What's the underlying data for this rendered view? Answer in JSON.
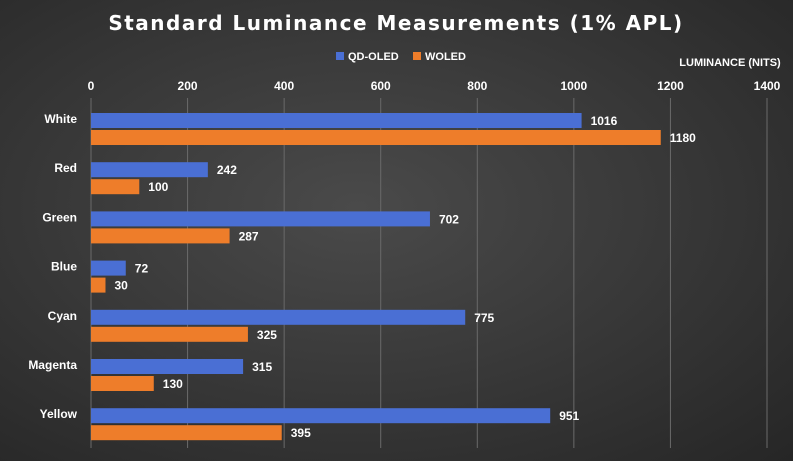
{
  "chart_data": {
    "type": "bar",
    "orientation": "horizontal",
    "title": "Standard Luminance Measurements (1% APL)",
    "xlabel": "LUMINANCE (NITS)",
    "ylabel": "",
    "xlim": [
      0,
      1400
    ],
    "ticks": [
      "0",
      "200",
      "400",
      "600",
      "800",
      "1000",
      "1200",
      "1400"
    ],
    "tick_values": [
      0,
      200,
      400,
      600,
      800,
      1000,
      1200,
      1400
    ],
    "grid": true,
    "axis_position": "top",
    "legend_position": "top",
    "categories": [
      "White",
      "Red",
      "Green",
      "Blue",
      "Cyan",
      "Magenta",
      "Yellow"
    ],
    "series": [
      {
        "name": "QD-OLED",
        "color": "#4a6fd4",
        "values": [
          1016,
          242,
          702,
          72,
          775,
          315,
          951
        ]
      },
      {
        "name": "WOLED",
        "color": "#ee7d2a",
        "values": [
          1180,
          100,
          287,
          30,
          325,
          130,
          395
        ]
      }
    ]
  }
}
